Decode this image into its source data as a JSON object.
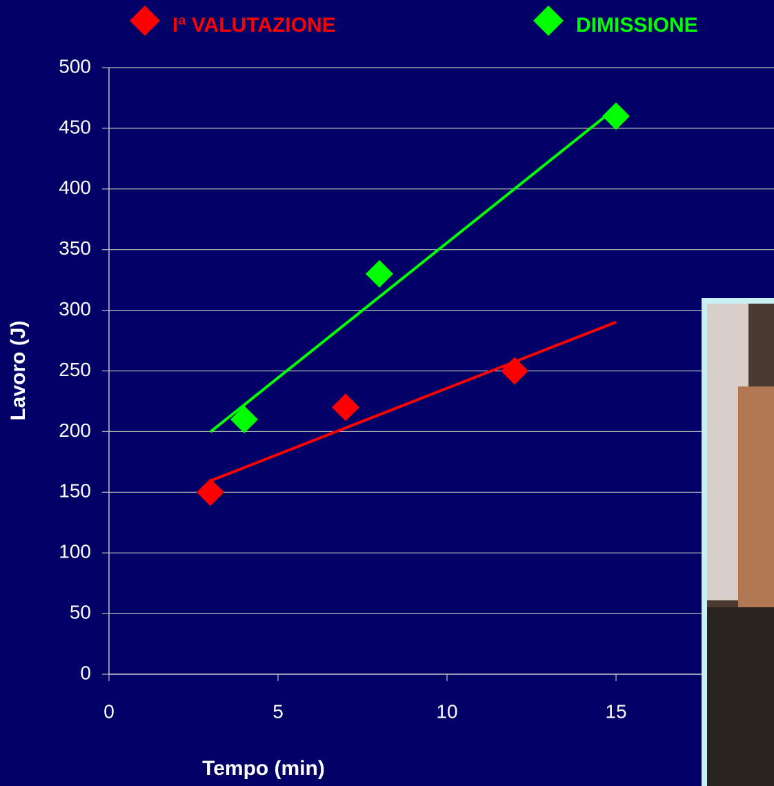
{
  "chart_data": {
    "type": "scatter",
    "x_label": "Tempo (min)",
    "y_label": "Lavoro (J)",
    "series": [
      {
        "name": "Iª VALUTAZIONE",
        "color": "#ff0000",
        "x": [
          3,
          7,
          12
        ],
        "values": [
          150,
          220,
          250
        ]
      },
      {
        "name": "DIMISSIONE",
        "color": "#00ff00",
        "x": [
          4,
          8,
          15
        ],
        "values": [
          210,
          330,
          460
        ]
      }
    ],
    "trendline": "linear",
    "xlim": [
      0,
      20
    ],
    "xticks": [
      0,
      5,
      10,
      15
    ],
    "ylim": [
      0,
      500
    ],
    "yticks": [
      0,
      50,
      100,
      150,
      200,
      250,
      300,
      350,
      400,
      450,
      500
    ],
    "grid": true,
    "legend": "top"
  }
}
